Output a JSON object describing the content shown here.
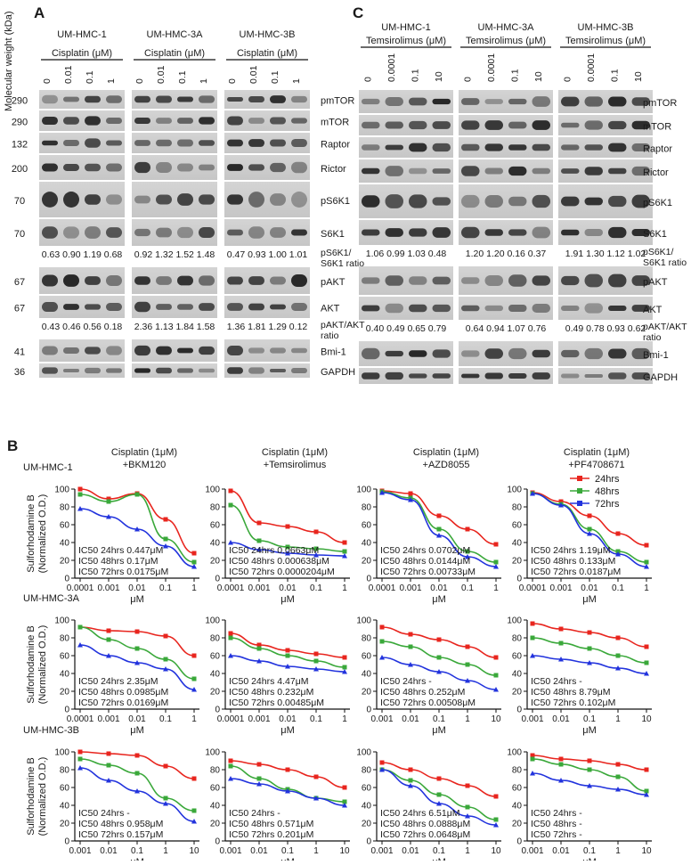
{
  "panel_a": {
    "letter": "A",
    "mw_axis_label": "Molecular weight (kDa)",
    "col_labels": [
      "0",
      "0.01",
      "0.1",
      "1"
    ],
    "groups": [
      {
        "cell": "UM-HMC-1",
        "drug": "Cisplatin (μM)"
      },
      {
        "cell": "UM-HMC-3A",
        "drug": "Cisplatin (μM)"
      },
      {
        "cell": "UM-HMC-3B",
        "drug": "Cisplatin (μM)"
      }
    ],
    "bands": [
      {
        "mw": "290",
        "label": "pmTOR"
      },
      {
        "mw": "290",
        "label": "mTOR"
      },
      {
        "mw": "132",
        "label": "Raptor"
      },
      {
        "mw": "200",
        "label": "Rictor"
      },
      {
        "mw": "70",
        "label": "pS6K1"
      },
      {
        "mw": "70",
        "label": "S6K1"
      },
      {
        "mw": "67",
        "label": "pAKT"
      },
      {
        "mw": "67",
        "label": "AKT"
      },
      {
        "mw": "41",
        "label": "Bmi-1"
      },
      {
        "mw": "36",
        "label": "GAPDH"
      }
    ],
    "ratio1_label": [
      "pS6K1/",
      "S6K1 ratio"
    ],
    "ratio1_values": [
      "0.63 0.90 1.19 0.68",
      "0.92 1.32 1.52 1.48",
      "0.47 0.93 1.00 1.01"
    ],
    "ratio2_label": [
      "pAKT/AKT",
      "ratio"
    ],
    "ratio2_values": [
      "0.43 0.46 0.56 0.18",
      "2.36 1.13 1.84 1.58",
      "1.36 1.81 1.29 0.12"
    ]
  },
  "panel_c": {
    "letter": "C",
    "col_labels": [
      "0",
      "0.0001",
      "0.1",
      "10"
    ],
    "groups": [
      {
        "cell": "UM-HMC-1",
        "drug": "Temsirolimus (μM)"
      },
      {
        "cell": "UM-HMC-3A",
        "drug": "Temsirolimus (μM)"
      },
      {
        "cell": "UM-HMC-3B",
        "drug": "Temsirolimus (μM)"
      }
    ],
    "bands": [
      {
        "label": "pmTOR"
      },
      {
        "label": "mTOR"
      },
      {
        "label": "Raptor"
      },
      {
        "label": "Rictor"
      },
      {
        "label": "pS6K1"
      },
      {
        "label": "S6K1"
      },
      {
        "label": "pAKT"
      },
      {
        "label": "AKT"
      },
      {
        "label": "Bmi-1"
      },
      {
        "label": "GAPDH"
      }
    ],
    "ratio1_label": [
      "pS6K1/",
      "S6K1 ratio"
    ],
    "ratio1_values": [
      "1.06 0.99 1.03 0.48",
      "1.20 1.20 0.16 0.37",
      "1.91 1.30 1.12 1.02"
    ],
    "ratio2_label": [
      "pAKT/AKT",
      "ratio"
    ],
    "ratio2_values": [
      "0.40 0.49 0.65 0.79",
      "0.64 0.94 1.07 0.76",
      "0.49 0.78 0.93 0.62"
    ]
  },
  "panel_b": {
    "letter": "B",
    "legend": [
      {
        "name": "24hrs",
        "color": "#e8251e"
      },
      {
        "name": "48hrs",
        "color": "#3aa83a"
      },
      {
        "name": "72hrs",
        "color": "#2233dd"
      }
    ],
    "column_titles": [
      [
        "Cisplatin (1μM)",
        "+BKM120"
      ],
      [
        "Cisplatin (1μM)",
        "+Temsirolimus"
      ],
      [
        "Cisplatin (1μM)",
        "+AZD8055"
      ],
      [
        "Cisplatin (1μM)",
        "+PF4708671"
      ]
    ],
    "row_labels": [
      "UM-HMC-1",
      "UM-HMC-3A",
      "UM-HMC-3B"
    ],
    "ylabel": [
      "Sulforhodamine B",
      "(Normalized O.D.)"
    ],
    "xlabel": "μM"
  },
  "chart_data": [
    {
      "type": "scatter",
      "row": "UM-HMC-1",
      "col": "+BKM120",
      "x": [
        0.0001,
        0.001,
        0.01,
        0.1,
        1
      ],
      "x_ticks": [
        "0.0001",
        "0.001",
        "0.01",
        "0.1",
        "1"
      ],
      "y_ticks": [
        "0",
        "20",
        "40",
        "60",
        "80",
        "100"
      ],
      "ylim": [
        0,
        100
      ],
      "xscale": "log",
      "xlabel": "μM",
      "series": [
        {
          "name": "24hrs",
          "values": [
            100,
            89,
            95,
            66,
            28
          ]
        },
        {
          "name": "48hrs",
          "values": [
            94,
            86,
            94,
            44,
            18
          ]
        },
        {
          "name": "72hrs",
          "values": [
            78,
            69,
            55,
            36,
            13
          ]
        }
      ],
      "annotations": [
        "IC50 24hrs 0.447μM",
        "IC50 48hrs 0.17μM",
        "IC50 72hrs 0.0175μM"
      ]
    },
    {
      "type": "scatter",
      "row": "UM-HMC-1",
      "col": "+Temsirolimus",
      "x": [
        0.0001,
        0.001,
        0.01,
        0.1,
        1
      ],
      "x_ticks": [
        "0.0001",
        "0.001",
        "0.01",
        "0.1",
        "1"
      ],
      "y_ticks": [
        "0",
        "20",
        "40",
        "60",
        "80",
        "100"
      ],
      "ylim": [
        0,
        100
      ],
      "xscale": "log",
      "xlabel": "μM",
      "series": [
        {
          "name": "24hrs",
          "values": [
            98,
            62,
            58,
            52,
            40
          ]
        },
        {
          "name": "48hrs",
          "values": [
            82,
            42,
            35,
            33,
            30
          ]
        },
        {
          "name": "72hrs",
          "values": [
            40,
            32,
            28,
            26,
            25
          ]
        }
      ],
      "annotations": [
        "IC50 24hrs 0.0663μM",
        "IC50 48hrs 0.000638μM",
        "IC50 72hrs 0.0000204μM"
      ]
    },
    {
      "type": "scatter",
      "row": "UM-HMC-1",
      "col": "+AZD8055",
      "x": [
        0.0001,
        0.001,
        0.01,
        0.1,
        1
      ],
      "x_ticks": [
        "0.0001",
        "0.001",
        "0.01",
        "0.1",
        "1"
      ],
      "y_ticks": [
        "0",
        "20",
        "40",
        "60",
        "80",
        "100"
      ],
      "ylim": [
        0,
        100
      ],
      "xscale": "log",
      "xlabel": "μM",
      "series": [
        {
          "name": "24hrs",
          "values": [
            98,
            95,
            70,
            55,
            38
          ]
        },
        {
          "name": "48hrs",
          "values": [
            97,
            90,
            55,
            30,
            18
          ]
        },
        {
          "name": "72hrs",
          "values": [
            96,
            88,
            48,
            24,
            13
          ]
        }
      ],
      "annotations": [
        "IC50 24hrs 0.0702μM",
        "IC50 48hrs 0.0144μM",
        "IC50 72hrs 0.00733μM"
      ]
    },
    {
      "type": "scatter",
      "row": "UM-HMC-1",
      "col": "+PF4708671",
      "x": [
        0.0001,
        0.001,
        0.01,
        0.1,
        1
      ],
      "x_ticks": [
        "0.0001",
        "0.001",
        "0.01",
        "0.1",
        "1"
      ],
      "y_ticks": [
        "0",
        "20",
        "40",
        "60",
        "80",
        "100"
      ],
      "ylim": [
        0,
        100
      ],
      "xscale": "log",
      "xlabel": "μM",
      "series": [
        {
          "name": "24hrs",
          "values": [
            96,
            86,
            70,
            50,
            37
          ]
        },
        {
          "name": "48hrs",
          "values": [
            95,
            83,
            55,
            30,
            18
          ]
        },
        {
          "name": "72hrs",
          "values": [
            95,
            82,
            50,
            27,
            13
          ]
        }
      ],
      "annotations": [
        "IC50 24hrs 1.19μM",
        "IC50 48hrs 0.133μM",
        "IC50 72hrs 0.0187μM"
      ]
    },
    {
      "type": "scatter",
      "row": "UM-HMC-3A",
      "col": "+BKM120",
      "x": [
        0.0001,
        0.001,
        0.01,
        0.1,
        1
      ],
      "x_ticks": [
        "0.0001",
        "0.001",
        "0.01",
        "0.1",
        "1"
      ],
      "y_ticks": [
        "0",
        "20",
        "40",
        "60",
        "80",
        "100"
      ],
      "ylim": [
        0,
        100
      ],
      "xscale": "log",
      "xlabel": "μM",
      "series": [
        {
          "name": "24hrs",
          "values": [
            92,
            88,
            87,
            82,
            60
          ]
        },
        {
          "name": "48hrs",
          "values": [
            92,
            78,
            68,
            56,
            34
          ]
        },
        {
          "name": "72hrs",
          "values": [
            72,
            60,
            52,
            45,
            22
          ]
        }
      ],
      "annotations": [
        "IC50 24hrs 2.35μM",
        "IC50 48hrs 0.0985μM",
        "IC50 72hrs 0.0169μM"
      ]
    },
    {
      "type": "scatter",
      "row": "UM-HMC-3A",
      "col": "+Temsirolimus",
      "x": [
        0.0001,
        0.001,
        0.01,
        0.1,
        1
      ],
      "x_ticks": [
        "0.0001",
        "0.001",
        "0.01",
        "0.1",
        "1"
      ],
      "y_ticks": [
        "0",
        "20",
        "40",
        "60",
        "80",
        "100"
      ],
      "ylim": [
        0,
        100
      ],
      "xscale": "log",
      "xlabel": "μM",
      "series": [
        {
          "name": "24hrs",
          "values": [
            85,
            72,
            66,
            62,
            58
          ]
        },
        {
          "name": "48hrs",
          "values": [
            80,
            68,
            60,
            54,
            47
          ]
        },
        {
          "name": "72hrs",
          "values": [
            60,
            54,
            48,
            45,
            42
          ]
        }
      ],
      "annotations": [
        "IC50 24hrs 4.47μM",
        "IC50 48hrs 0.232μM",
        "IC50 72hrs 0.00485μM"
      ]
    },
    {
      "type": "scatter",
      "row": "UM-HMC-3A",
      "col": "+AZD8055",
      "x": [
        0.001,
        0.01,
        0.1,
        1,
        10
      ],
      "x_ticks": [
        "0.001",
        "0.01",
        "0.1",
        "1",
        "10"
      ],
      "y_ticks": [
        "0",
        "20",
        "40",
        "60",
        "80",
        "100"
      ],
      "ylim": [
        0,
        100
      ],
      "xscale": "log",
      "xlabel": "μM",
      "series": [
        {
          "name": "24hrs",
          "values": [
            92,
            84,
            78,
            70,
            58
          ]
        },
        {
          "name": "48hrs",
          "values": [
            76,
            70,
            58,
            50,
            38
          ]
        },
        {
          "name": "72hrs",
          "values": [
            58,
            50,
            42,
            32,
            22
          ]
        }
      ],
      "annotations": [
        "IC50 24hrs -",
        "IC50 48hrs 0.252μM",
        "IC50 72hrs 0.00508μM"
      ]
    },
    {
      "type": "scatter",
      "row": "UM-HMC-3A",
      "col": "+PF4708671",
      "x": [
        0.001,
        0.01,
        0.1,
        1,
        10
      ],
      "x_ticks": [
        "0.001",
        "0.01",
        "0.1",
        "1",
        "10"
      ],
      "y_ticks": [
        "0",
        "20",
        "40",
        "60",
        "80",
        "100"
      ],
      "ylim": [
        0,
        100
      ],
      "xscale": "log",
      "xlabel": "μM",
      "series": [
        {
          "name": "24hrs",
          "values": [
            96,
            90,
            86,
            80,
            70
          ]
        },
        {
          "name": "48hrs",
          "values": [
            80,
            74,
            68,
            60,
            52
          ]
        },
        {
          "name": "72hrs",
          "values": [
            60,
            56,
            52,
            46,
            40
          ]
        }
      ],
      "annotations": [
        "IC50 24hrs -",
        "IC50 48hrs 8.79μM",
        "IC50 72hrs 0.102μM"
      ]
    },
    {
      "type": "scatter",
      "row": "UM-HMC-3B",
      "col": "+BKM120",
      "x": [
        0.001,
        0.01,
        0.1,
        1,
        10
      ],
      "x_ticks": [
        "0.001",
        "0.01",
        "0.1",
        "1",
        "10"
      ],
      "y_ticks": [
        "0",
        "20",
        "40",
        "60",
        "80",
        "100"
      ],
      "ylim": [
        0,
        100
      ],
      "xscale": "log",
      "xlabel": "μM",
      "series": [
        {
          "name": "24hrs",
          "values": [
            100,
            98,
            96,
            84,
            70
          ]
        },
        {
          "name": "48hrs",
          "values": [
            92,
            85,
            76,
            48,
            34
          ]
        },
        {
          "name": "72hrs",
          "values": [
            82,
            68,
            56,
            42,
            22
          ]
        }
      ],
      "annotations": [
        "IC50 24hrs -",
        "IC50 48hrs 0.958μM",
        "IC50 72hrs 0.157μM"
      ]
    },
    {
      "type": "scatter",
      "row": "UM-HMC-3B",
      "col": "+Temsirolimus",
      "x": [
        0.001,
        0.01,
        0.1,
        1,
        10
      ],
      "x_ticks": [
        "0.001",
        "0.01",
        "0.1",
        "1",
        "10"
      ],
      "y_ticks": [
        "0",
        "20",
        "40",
        "60",
        "80",
        "100"
      ],
      "ylim": [
        0,
        100
      ],
      "xscale": "log",
      "xlabel": "μM",
      "series": [
        {
          "name": "24hrs",
          "values": [
            90,
            86,
            80,
            72,
            60
          ]
        },
        {
          "name": "48hrs",
          "values": [
            84,
            70,
            58,
            48,
            44
          ]
        },
        {
          "name": "72hrs",
          "values": [
            70,
            64,
            56,
            48,
            40
          ]
        }
      ],
      "annotations": [
        "IC50 24hrs -",
        "IC50 48hrs 0.571μM",
        "IC50 72hrs 0.201μM"
      ]
    },
    {
      "type": "scatter",
      "row": "UM-HMC-3B",
      "col": "+AZD8055",
      "x": [
        0.001,
        0.01,
        0.1,
        1,
        10
      ],
      "x_ticks": [
        "0.001",
        "0.01",
        "0.1",
        "1",
        "10"
      ],
      "y_ticks": [
        "0",
        "20",
        "40",
        "60",
        "80",
        "100"
      ],
      "ylim": [
        0,
        100
      ],
      "xscale": "log",
      "xlabel": "μM",
      "series": [
        {
          "name": "24hrs",
          "values": [
            88,
            80,
            70,
            62,
            50
          ]
        },
        {
          "name": "48hrs",
          "values": [
            80,
            68,
            52,
            38,
            24
          ]
        },
        {
          "name": "72hrs",
          "values": [
            80,
            62,
            42,
            28,
            18
          ]
        }
      ],
      "annotations": [
        "IC50 24hrs 6.51μM",
        "IC50 48hrs 0.0888μM",
        "IC50 72hrs 0.0648μM"
      ]
    },
    {
      "type": "scatter",
      "row": "UM-HMC-3B",
      "col": "+PF4708671",
      "x": [
        0.001,
        0.01,
        0.1,
        1,
        10
      ],
      "x_ticks": [
        "0.001",
        "0.01",
        "0.1",
        "1",
        "10"
      ],
      "y_ticks": [
        "0",
        "20",
        "40",
        "60",
        "80",
        "100"
      ],
      "ylim": [
        0,
        100
      ],
      "xscale": "log",
      "xlabel": "μM",
      "series": [
        {
          "name": "24hrs",
          "values": [
            96,
            92,
            90,
            86,
            80
          ]
        },
        {
          "name": "48hrs",
          "values": [
            92,
            86,
            80,
            72,
            56
          ]
        },
        {
          "name": "72hrs",
          "values": [
            76,
            68,
            62,
            58,
            52
          ]
        }
      ],
      "annotations": [
        "IC50 24hrs -",
        "IC50 48hrs -",
        "IC50 72hrs -"
      ]
    }
  ]
}
